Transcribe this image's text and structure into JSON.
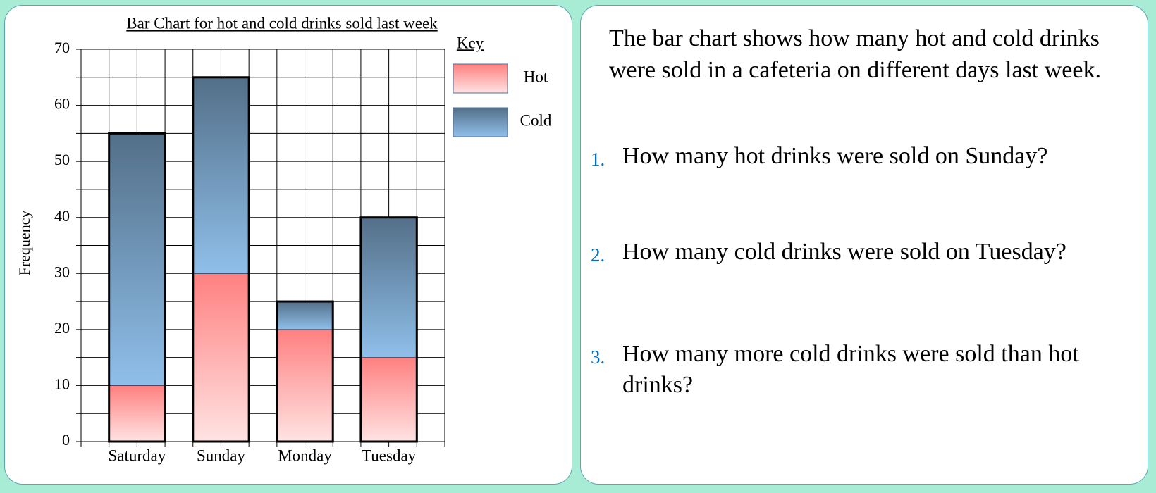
{
  "chart_data": {
    "type": "bar",
    "stacked": true,
    "title": "Bar Chart for hot and cold drinks sold last week",
    "ylabel": "Frequency",
    "legend_title": "Key",
    "categories": [
      "Saturday",
      "Sunday",
      "Monday",
      "Tuesday"
    ],
    "series": [
      {
        "name": "Hot",
        "color": "#ff8080",
        "values": [
          10,
          30,
          20,
          15
        ]
      },
      {
        "name": "Cold",
        "color": "#8fbfea",
        "values": [
          45,
          35,
          5,
          25
        ]
      }
    ],
    "ylim": [
      0,
      70
    ],
    "yticks": [
      0,
      10,
      20,
      30,
      40,
      50,
      60,
      70
    ],
    "minor_yticks": [
      5,
      15,
      25,
      35,
      45,
      55,
      65
    ],
    "grid": true
  },
  "text": {
    "intro": "The bar chart shows how many hot and cold drinks were sold in a cafeteria on different days last week.",
    "questions": [
      {
        "number": "1.",
        "text": "How many hot drinks were sold on Sunday?"
      },
      {
        "number": "2.",
        "text": "How many cold drinks were sold on Tuesday?"
      },
      {
        "number": "3.",
        "text": "How many more cold drinks were sold than hot drinks?"
      }
    ]
  }
}
